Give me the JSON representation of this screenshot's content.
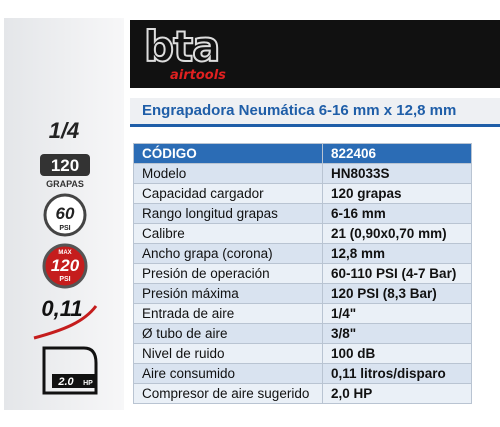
{
  "header": {
    "logo": "bta",
    "sublogo": "airtools"
  },
  "title": "Engrapadora Neumática 6-16 mm x 12,8 mm",
  "icons": {
    "fraction": "1/4",
    "capacity": {
      "value": "120",
      "unit": "GRAPAS"
    },
    "pressure": {
      "value": "60",
      "unit": "PSI"
    },
    "max_pressure": {
      "label": "MAX",
      "value": "120",
      "unit": "PSI"
    },
    "consumption": "0,11",
    "power": {
      "value": "2.0",
      "unit": "HP"
    }
  },
  "table": {
    "header": [
      "CÓDIGO",
      "822406"
    ],
    "rows": [
      [
        "Modelo",
        "HN8033S"
      ],
      [
        "Capacidad cargador",
        "120 grapas"
      ],
      [
        "Rango longitud grapas",
        "6-16 mm"
      ],
      [
        "Calibre",
        "21 (0,90x0,70 mm)"
      ],
      [
        "Ancho grapa (corona)",
        "12,8 mm"
      ],
      [
        "Presión de operación",
        "60-110 PSI (4-7 Bar)"
      ],
      [
        "Presión máxima",
        "120 PSI (8,3 Bar)"
      ],
      [
        "Entrada de aire",
        "1/4\""
      ],
      [
        "Ø tubo de aire",
        "3/8\""
      ],
      [
        "Nivel de ruido",
        "100 dB"
      ],
      [
        "Aire consumido",
        "0,11 litros/disparo"
      ],
      [
        "Compresor de aire sugerido",
        "2,0 HP"
      ]
    ]
  }
}
